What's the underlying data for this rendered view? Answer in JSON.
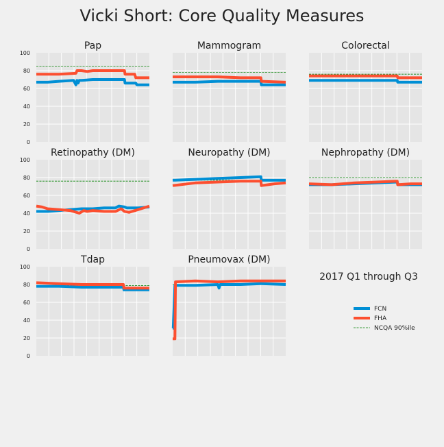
{
  "title": "Vicki Short: Core Quality Measures",
  "note": "2017 Q1 through Q3",
  "colors": {
    "FCN": "#008fd5",
    "FHA": "#fc4f30",
    "NCQA": "#008000",
    "panel": "#e5e5e5",
    "grid": "#ffffff"
  },
  "legend": [
    {
      "label": "FCN",
      "style": "FCN"
    },
    {
      "label": "FHA",
      "style": "FHA"
    },
    {
      "label": "NCQA 90%ile",
      "style": "NCQA"
    }
  ],
  "chart_data": [
    {
      "type": "line",
      "title": "Pap",
      "ylim": [
        0,
        100
      ],
      "yticks": [
        0,
        20,
        40,
        60,
        80,
        100
      ],
      "ncqa": 85,
      "series": [
        {
          "name": "FCN",
          "x": [
            0,
            0.1,
            0.2,
            0.33,
            0.35,
            0.36,
            0.37,
            0.38,
            0.4,
            0.5,
            0.6,
            0.7,
            0.78,
            0.785,
            0.88,
            0.89,
            1.0
          ],
          "values": [
            67,
            67,
            68,
            69,
            64,
            69,
            66,
            69,
            69,
            70,
            70,
            70,
            70,
            66,
            66,
            64,
            64
          ]
        },
        {
          "name": "FHA",
          "x": [
            0,
            0.1,
            0.2,
            0.35,
            0.36,
            0.4,
            0.45,
            0.5,
            0.6,
            0.78,
            0.785,
            0.87,
            0.88,
            1.0
          ],
          "values": [
            76,
            76,
            76,
            77,
            80,
            80,
            79,
            80,
            80,
            80,
            76,
            76,
            72,
            72
          ]
        }
      ]
    },
    {
      "type": "line",
      "title": "Mammogram",
      "ylim": [
        0,
        100
      ],
      "yticks": [
        0,
        20,
        40,
        60,
        80,
        100
      ],
      "ncqa": 78,
      "series": [
        {
          "name": "FCN",
          "x": [
            0,
            0.2,
            0.4,
            0.6,
            0.78,
            0.785,
            1.0
          ],
          "values": [
            67,
            67,
            68,
            68,
            68,
            64,
            64
          ]
        },
        {
          "name": "FHA",
          "x": [
            0,
            0.2,
            0.4,
            0.6,
            0.78,
            0.785,
            1.0
          ],
          "values": [
            73,
            73,
            73,
            72,
            72,
            68,
            67
          ]
        }
      ]
    },
    {
      "type": "line",
      "title": "Colorectal",
      "ylim": [
        0,
        100
      ],
      "yticks": [
        0,
        20,
        40,
        60,
        80,
        100
      ],
      "ncqa": 76,
      "series": [
        {
          "name": "FCN",
          "x": [
            0,
            0.2,
            0.4,
            0.6,
            0.78,
            0.785,
            1.0
          ],
          "values": [
            69,
            69,
            69,
            69,
            69,
            67,
            67
          ]
        },
        {
          "name": "FHA",
          "x": [
            0,
            0.2,
            0.4,
            0.6,
            0.78,
            0.785,
            1.0
          ],
          "values": [
            74,
            74,
            74,
            74,
            74,
            72,
            72
          ]
        }
      ]
    },
    {
      "type": "line",
      "title": "Retinopathy (DM)",
      "ylim": [
        0,
        100
      ],
      "yticks": [
        0,
        20,
        40,
        60,
        80,
        100
      ],
      "ncqa": 76,
      "series": [
        {
          "name": "FCN",
          "x": [
            0,
            0.1,
            0.2,
            0.3,
            0.4,
            0.5,
            0.6,
            0.7,
            0.73,
            0.78,
            0.8,
            0.9,
            1.0
          ],
          "values": [
            42,
            42,
            43,
            44,
            45,
            45,
            46,
            46,
            48,
            47,
            46,
            46,
            47
          ]
        },
        {
          "name": "FHA",
          "x": [
            0,
            0.05,
            0.1,
            0.2,
            0.3,
            0.38,
            0.42,
            0.45,
            0.5,
            0.6,
            0.7,
            0.75,
            0.78,
            0.82,
            0.9,
            1.0
          ],
          "values": [
            48,
            47,
            45,
            44,
            43,
            40,
            43,
            42,
            43,
            42,
            42,
            45,
            42,
            41,
            44,
            48
          ]
        }
      ]
    },
    {
      "type": "line",
      "title": "Neuropathy (DM)",
      "ylim": [
        0,
        100
      ],
      "yticks": [
        0,
        20,
        40,
        60,
        80,
        100
      ],
      "ncqa": 77,
      "series": [
        {
          "name": "FCN",
          "x": [
            0,
            0.2,
            0.4,
            0.6,
            0.78,
            0.785,
            1.0
          ],
          "values": [
            77,
            78,
            79,
            80,
            81,
            77,
            77
          ]
        },
        {
          "name": "FHA",
          "x": [
            0,
            0.2,
            0.4,
            0.6,
            0.78,
            0.785,
            0.9,
            1.0
          ],
          "values": [
            71,
            74,
            75,
            76,
            76,
            71,
            73,
            74
          ]
        }
      ]
    },
    {
      "type": "line",
      "title": "Nephropathy (DM)",
      "ylim": [
        0,
        100
      ],
      "yticks": [
        0,
        20,
        40,
        60,
        80,
        100
      ],
      "ncqa": 80,
      "series": [
        {
          "name": "FCN",
          "x": [
            0,
            0.2,
            0.4,
            0.6,
            0.78,
            0.785,
            1.0
          ],
          "values": [
            72,
            72,
            73,
            74,
            75,
            72,
            72
          ]
        },
        {
          "name": "FHA",
          "x": [
            0,
            0.2,
            0.4,
            0.6,
            0.78,
            0.785,
            0.9,
            1.0
          ],
          "values": [
            73,
            72,
            74,
            75,
            76,
            72,
            73,
            73
          ]
        }
      ]
    },
    {
      "type": "line",
      "title": "Tdap",
      "ylim": [
        0,
        100
      ],
      "yticks": [
        0,
        20,
        40,
        60,
        80,
        100
      ],
      "ncqa": 79,
      "series": [
        {
          "name": "FCN",
          "x": [
            0,
            0.2,
            0.4,
            0.6,
            0.77,
            0.775,
            1.0
          ],
          "values": [
            78,
            78,
            77,
            77,
            77,
            74,
            74
          ]
        },
        {
          "name": "FHA",
          "x": [
            0,
            0.2,
            0.4,
            0.6,
            0.77,
            0.775,
            1.0
          ],
          "values": [
            82,
            81,
            80,
            80,
            80,
            76,
            76
          ]
        }
      ]
    },
    {
      "type": "line",
      "title": "Pneumovax (DM)",
      "ylim": [
        0,
        100
      ],
      "yticks": [
        0,
        20,
        40,
        60,
        80,
        100
      ],
      "ncqa": 80,
      "series": [
        {
          "name": "FCN",
          "x": [
            0,
            0.005,
            0.02,
            0.2,
            0.4,
            0.41,
            0.42,
            0.6,
            0.78,
            1.0
          ],
          "values": [
            31,
            31,
            79,
            79,
            80,
            76,
            80,
            80,
            81,
            80
          ]
        },
        {
          "name": "FHA",
          "x": [
            0,
            0.02,
            0.025,
            0.2,
            0.4,
            0.6,
            0.78,
            1.0
          ],
          "values": [
            19,
            19,
            83,
            84,
            83,
            84,
            84,
            84
          ]
        }
      ]
    }
  ]
}
